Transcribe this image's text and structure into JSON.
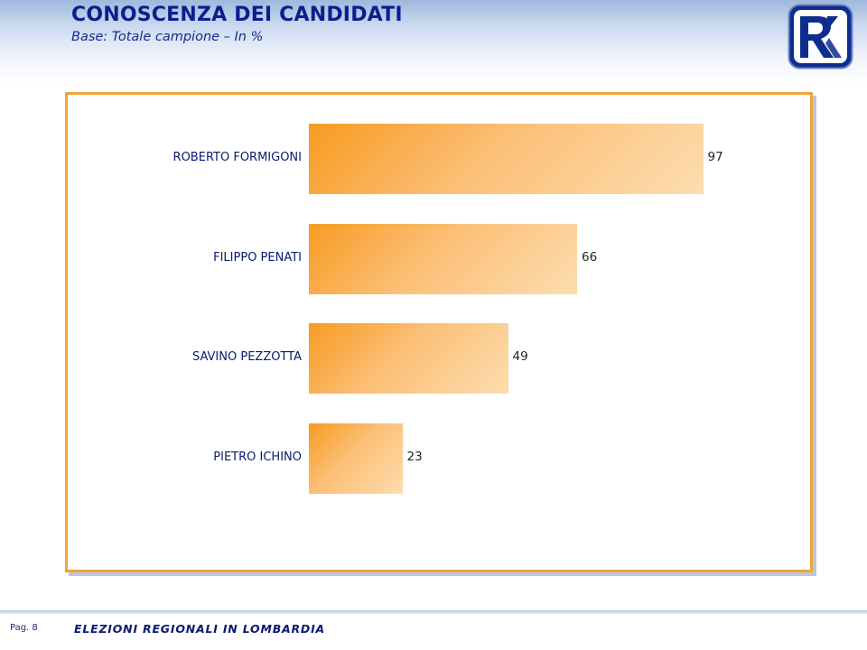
{
  "header": {
    "title": "CONOSCENZA DEI CANDIDATI",
    "subtitle": "Base: Totale campione – In %"
  },
  "logo": {
    "icon": "rk-logo-icon",
    "color": "#0d2e8c"
  },
  "chart_data": {
    "type": "bar",
    "orientation": "horizontal",
    "categories": [
      "ROBERTO FORMIGONI",
      "FILIPPO PENATI",
      "SAVINO PEZZOTTA",
      "PIETRO ICHINO"
    ],
    "values": [
      97,
      66,
      49,
      23
    ],
    "value_labels": [
      "97",
      "66",
      "49",
      "23"
    ],
    "xlim": [
      0,
      100
    ],
    "grid": false,
    "legend": "none",
    "bar_color_start": "#f89b22",
    "bar_color_end": "#fdddb0",
    "frame_color": "#f2a536"
  },
  "footer": {
    "page": "Pag. 8",
    "text": "ELEZIONI REGIONALI IN LOMBARDIA"
  }
}
